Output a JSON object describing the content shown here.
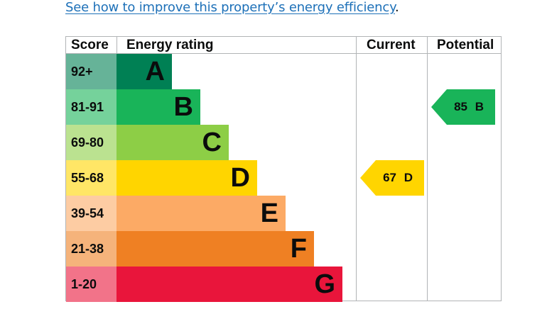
{
  "link": {
    "text": "See how to improve this property’s energy efficiency",
    "suffix": "."
  },
  "table": {
    "headers": {
      "score": "Score",
      "rating": "Energy rating",
      "current": "Current",
      "potential": "Potential"
    },
    "bands": [
      {
        "score": "92+",
        "letter": "A",
        "color": "#008054",
        "score_bg": "#66b398"
      },
      {
        "score": "81-91",
        "letter": "B",
        "color": "#19b459",
        "score_bg": "#75d29b"
      },
      {
        "score": "69-80",
        "letter": "C",
        "color": "#8dce46",
        "score_bg": "#bbe290"
      },
      {
        "score": "55-68",
        "letter": "D",
        "color": "#ffd500",
        "score_bg": "#ffe666"
      },
      {
        "score": "39-54",
        "letter": "E",
        "color": "#fcaa65",
        "score_bg": "#fdcca3"
      },
      {
        "score": "21-38",
        "letter": "F",
        "color": "#ef8023",
        "score_bg": "#f5b37b"
      },
      {
        "score": "1-20",
        "letter": "G",
        "color": "#e9153b",
        "score_bg": "#f27389"
      }
    ],
    "current": {
      "value": "67",
      "letter": "D",
      "color": "#ffd500"
    },
    "potential": {
      "value": "85",
      "letter": "B",
      "color": "#19b459"
    }
  }
}
